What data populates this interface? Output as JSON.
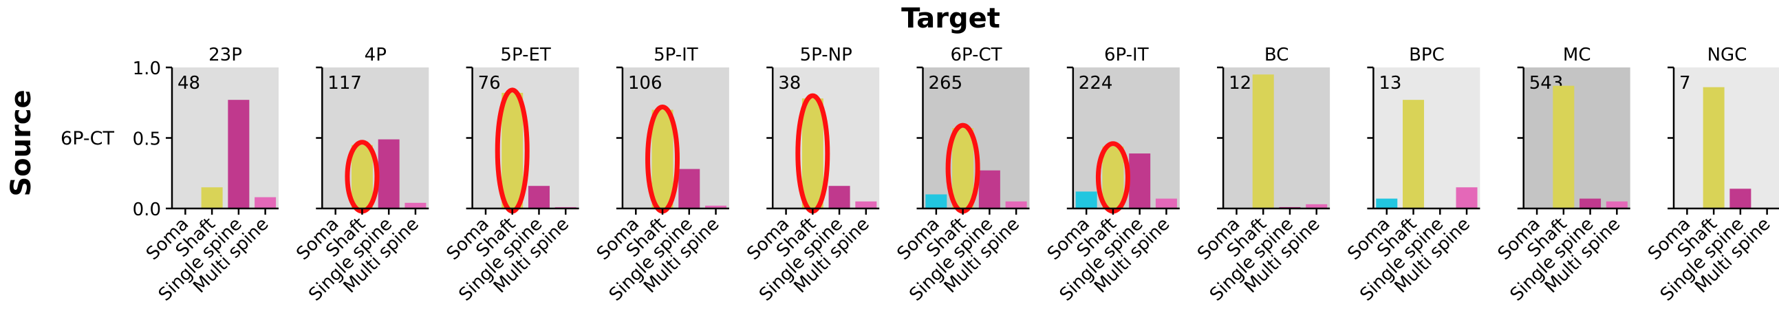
{
  "figure": {
    "title": "Target",
    "side_label": "Source",
    "row_label": "6P-CT"
  },
  "chart_data": {
    "type": "bar",
    "categories": [
      "Soma",
      "Shaft",
      "Single spine",
      "Multi spine"
    ],
    "category_colors": [
      "#22c6e0",
      "#d9d357",
      "#c0398d",
      "#e468b8"
    ],
    "highlight_color": "#ff1010",
    "ylim": [
      0,
      1.0
    ],
    "yticks": [
      "1.0",
      "0.5",
      "0.0"
    ],
    "panels": [
      {
        "name": "23P",
        "n": "48",
        "bg": "#dedede",
        "values": [
          0.0,
          0.15,
          0.77,
          0.08
        ],
        "highlight": false
      },
      {
        "name": "4P",
        "n": "117",
        "bg": "#d8d8d8",
        "values": [
          0.0,
          0.45,
          0.49,
          0.04
        ],
        "highlight": true
      },
      {
        "name": "5P-ET",
        "n": "76",
        "bg": "#dddddd",
        "values": [
          0.0,
          0.82,
          0.16,
          0.01
        ],
        "highlight": true
      },
      {
        "name": "5P-IT",
        "n": "106",
        "bg": "#d8d8d8",
        "values": [
          0.0,
          0.7,
          0.28,
          0.02
        ],
        "highlight": true
      },
      {
        "name": "5P-NP",
        "n": "38",
        "bg": "#e2e2e2",
        "values": [
          0.0,
          0.78,
          0.16,
          0.05
        ],
        "highlight": true
      },
      {
        "name": "6P-CT",
        "n": "265",
        "bg": "#c8c8c8",
        "values": [
          0.1,
          0.57,
          0.27,
          0.05
        ],
        "highlight": true
      },
      {
        "name": "6P-IT",
        "n": "224",
        "bg": "#cfcfcf",
        "values": [
          0.12,
          0.44,
          0.39,
          0.07
        ],
        "highlight": true
      },
      {
        "name": "BC",
        "n": "121",
        "bg": "#d2d2d2",
        "values": [
          0.0,
          0.95,
          0.01,
          0.03
        ],
        "highlight": false
      },
      {
        "name": "BPC",
        "n": "13",
        "bg": "#e8e8e8",
        "values": [
          0.07,
          0.77,
          0.0,
          0.15
        ],
        "highlight": false
      },
      {
        "name": "MC",
        "n": "543",
        "bg": "#c4c4c4",
        "values": [
          0.0,
          0.87,
          0.07,
          0.05
        ],
        "highlight": false
      },
      {
        "name": "NGC",
        "n": "7",
        "bg": "#e9e9e9",
        "values": [
          0.0,
          0.86,
          0.14,
          0.0
        ],
        "highlight": false
      }
    ]
  }
}
